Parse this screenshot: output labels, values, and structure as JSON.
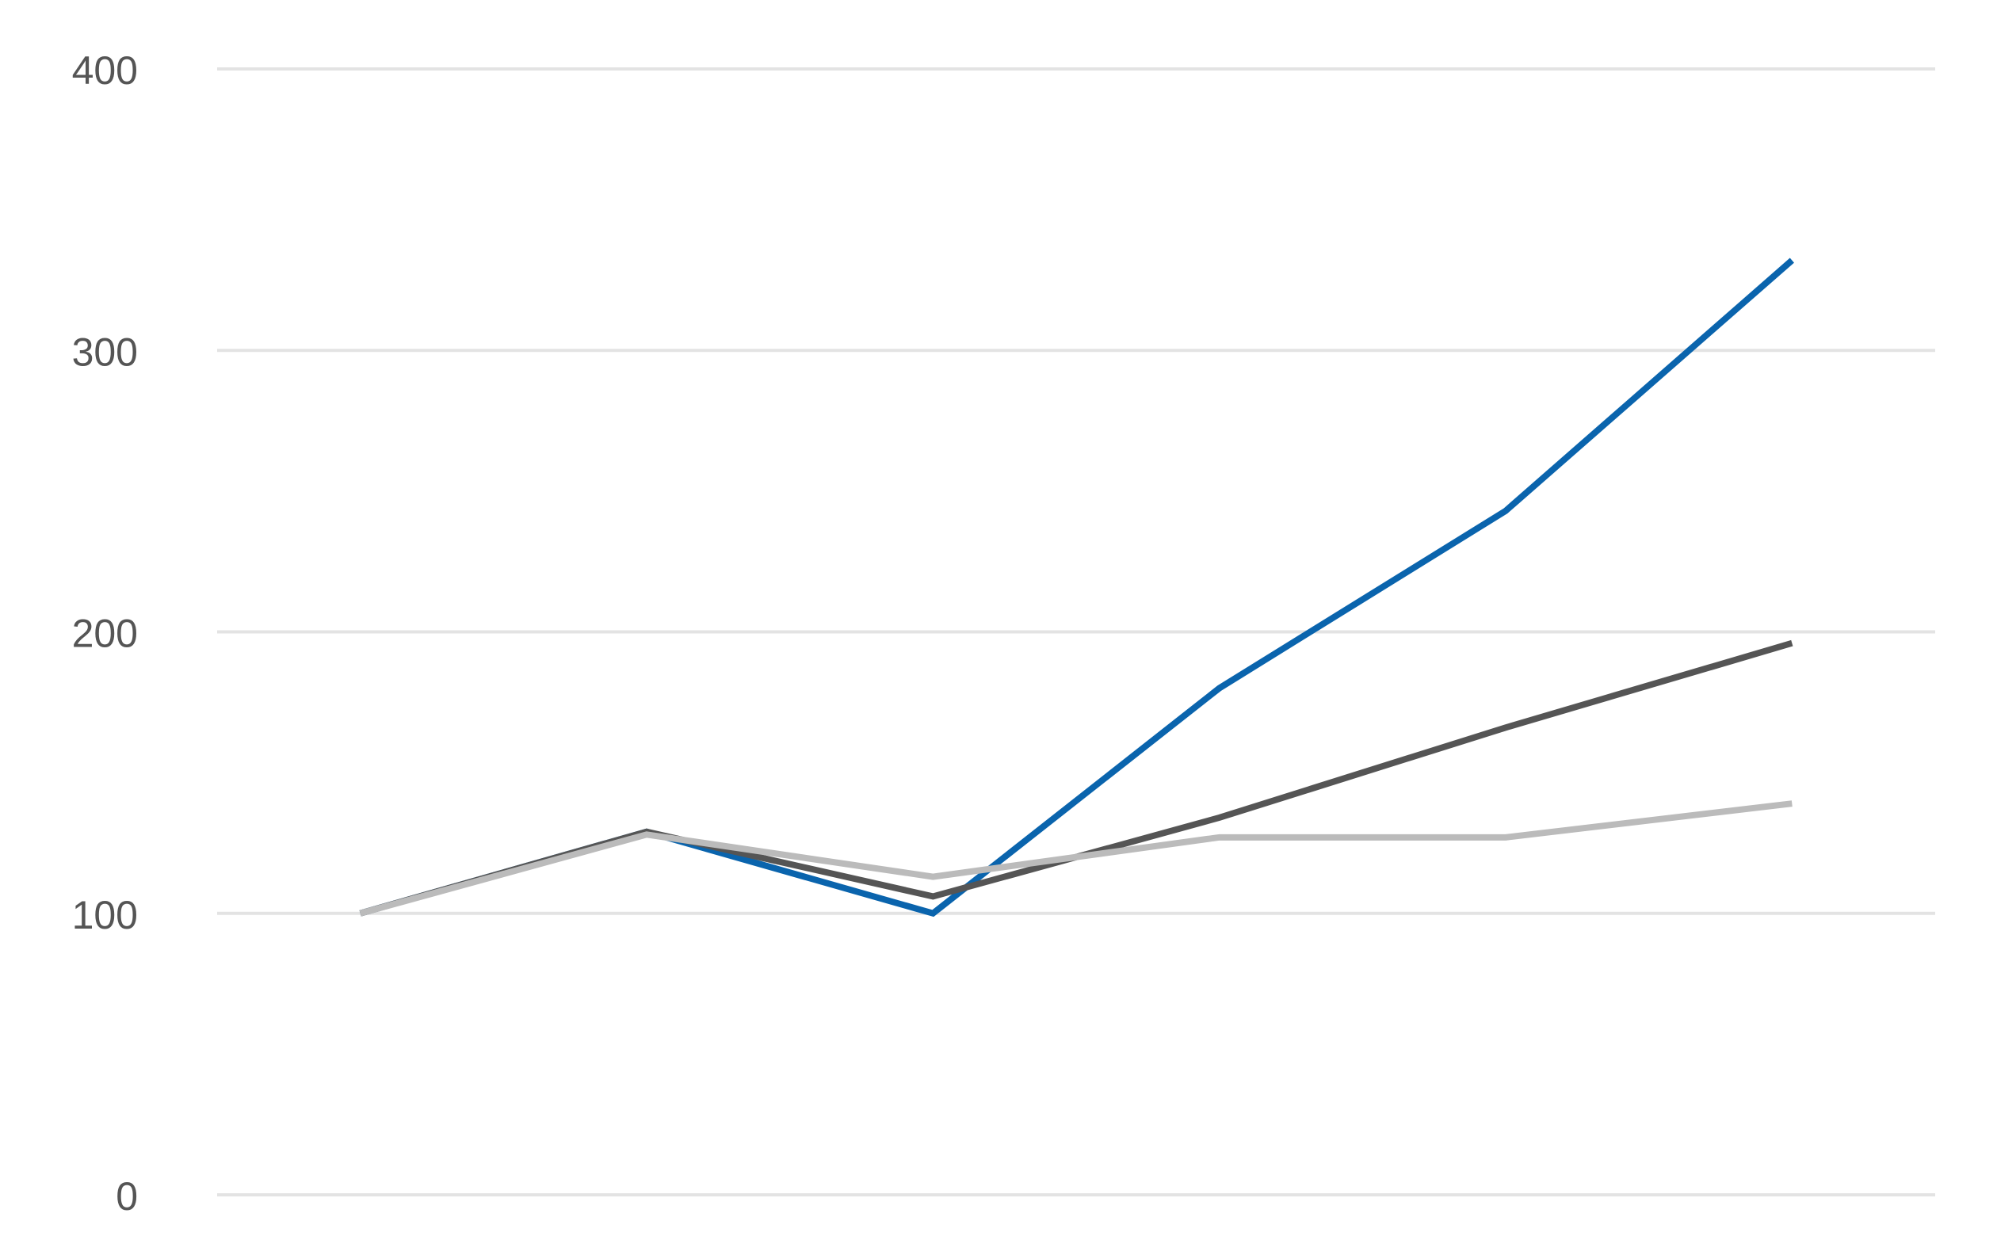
{
  "chart_data": {
    "type": "line",
    "categories": [
      null,
      null,
      null,
      null,
      null,
      null
    ],
    "series": [
      {
        "color": "#0a64ad",
        "values": [
          100,
          129,
          100,
          180,
          243,
          332
        ]
      },
      {
        "color": "#555555",
        "values": [
          100,
          129,
          106,
          134,
          166,
          196
        ]
      },
      {
        "color": "#bbbbbb",
        "values": [
          100,
          128,
          113,
          127,
          127,
          139
        ]
      }
    ],
    "ylim": [
      0,
      400
    ],
    "yticks": [
      0,
      100,
      200,
      300,
      400
    ],
    "grid": true
  }
}
